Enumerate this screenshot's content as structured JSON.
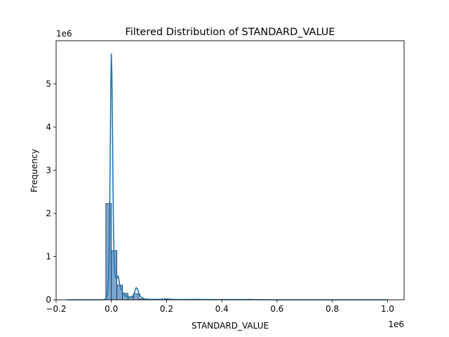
{
  "chart_data": {
    "type": "histogram",
    "title": "Filtered Distribution of STANDARD_VALUE",
    "xlabel": "STANDARD_VALUE",
    "ylabel": "Frequency",
    "x_offset_label": "1e6",
    "y_offset_label": "1e6",
    "xlim": [
      -0.2,
      1.06
    ],
    "ylim": [
      0,
      6.0
    ],
    "xticks": [
      -0.2,
      0.0,
      0.2,
      0.4,
      0.6,
      0.8,
      1.0
    ],
    "xtick_labels": [
      "−0.2",
      "0.0",
      "0.2",
      "0.4",
      "0.6",
      "0.8",
      "1.0"
    ],
    "yticks": [
      0,
      1,
      2,
      3,
      4,
      5
    ],
    "ytick_labels": [
      "0",
      "1",
      "2",
      "3",
      "4",
      "5"
    ],
    "bin_width": 0.02,
    "bins": [
      {
        "x0": -0.02,
        "count": 2.23
      },
      {
        "x0": 0.0,
        "count": 1.14
      },
      {
        "x0": 0.02,
        "count": 0.34
      },
      {
        "x0": 0.04,
        "count": 0.15
      },
      {
        "x0": 0.06,
        "count": 0.07
      },
      {
        "x0": 0.08,
        "count": 0.14
      },
      {
        "x0": 0.1,
        "count": 0.02
      },
      {
        "x0": 0.12,
        "count": 0.01
      },
      {
        "x0": 0.14,
        "count": 0.005
      },
      {
        "x0": 0.16,
        "count": 0.003
      },
      {
        "x0": 0.18,
        "count": 0.02
      },
      {
        "x0": 0.2,
        "count": 0.01
      },
      {
        "x0": 0.22,
        "count": 0.003
      },
      {
        "x0": 0.24,
        "count": 0.003
      },
      {
        "x0": 0.26,
        "count": 0.002
      },
      {
        "x0": 0.28,
        "count": 0.005
      },
      {
        "x0": 0.3,
        "count": 0.002
      },
      {
        "x0": 0.32,
        "count": 0.001
      },
      {
        "x0": 0.36,
        "count": 0.001
      },
      {
        "x0": 0.38,
        "count": 0.001
      },
      {
        "x0": 0.4,
        "count": 0.002
      },
      {
        "x0": 0.48,
        "count": 0.002
      },
      {
        "x0": 0.5,
        "count": 0.003
      },
      {
        "x0": 0.58,
        "count": 0.001
      },
      {
        "x0": 0.8,
        "count": 0.001
      },
      {
        "x0": 0.98,
        "count": 0.001
      }
    ],
    "kde": {
      "x": [
        -0.16,
        -0.06,
        -0.03,
        -0.02,
        -0.015,
        -0.01,
        -0.007,
        -0.004,
        -0.002,
        0.0,
        0.002,
        0.004,
        0.006,
        0.008,
        0.01,
        0.013,
        0.016,
        0.02,
        0.025,
        0.03,
        0.035,
        0.04,
        0.045,
        0.05,
        0.055,
        0.06,
        0.07,
        0.08,
        0.085,
        0.09,
        0.095,
        0.1,
        0.105,
        0.11,
        0.12,
        0.14,
        0.16,
        0.18,
        0.2,
        0.22,
        0.26,
        0.3,
        0.35,
        0.4,
        0.45,
        0.49,
        0.5,
        0.51,
        0.6,
        0.7,
        0.8,
        0.9,
        1.0
      ],
      "y": [
        0.0,
        0.0,
        0.0,
        0.02,
        0.1,
        0.5,
        1.5,
        3.5,
        5.0,
        5.7,
        5.2,
        4.0,
        2.6,
        1.5,
        0.95,
        0.6,
        0.5,
        0.5,
        0.55,
        0.35,
        0.25,
        0.2,
        0.12,
        0.1,
        0.08,
        0.07,
        0.06,
        0.1,
        0.2,
        0.28,
        0.25,
        0.15,
        0.08,
        0.05,
        0.02,
        0.01,
        0.01,
        0.01,
        0.02,
        0.01,
        0.005,
        0.01,
        0.005,
        0.005,
        0.005,
        0.005,
        0.01,
        0.005,
        0.0,
        0.0,
        0.0,
        0.0,
        0.0
      ]
    },
    "bar_fill": "#7aa7d0",
    "bar_edge": "#1f2a36",
    "kde_color": "#1f77b4",
    "grid": false,
    "legend": "none"
  }
}
